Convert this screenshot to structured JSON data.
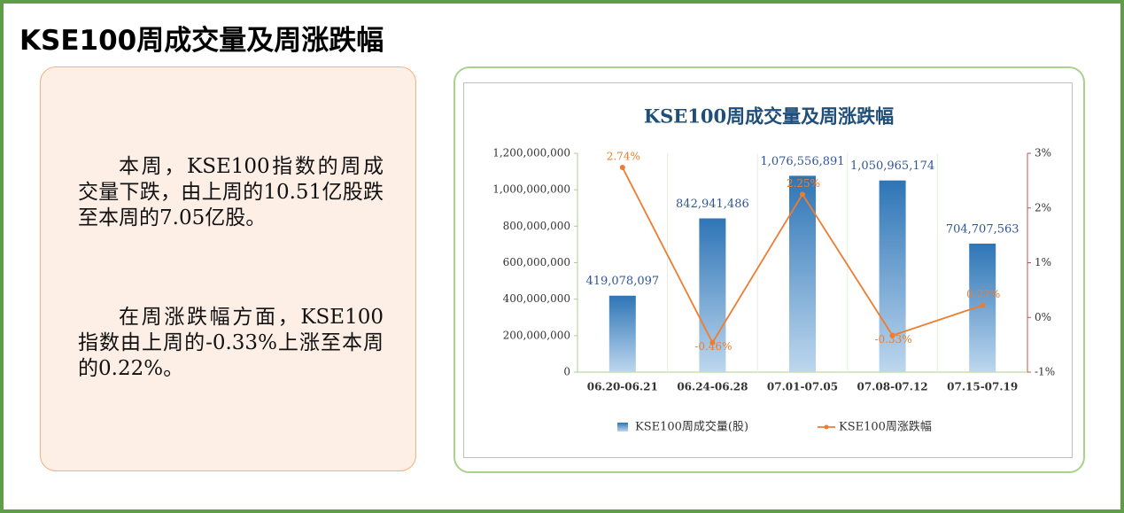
{
  "header": {
    "title": "KSE100周成交量及周涨跌幅"
  },
  "summary": {
    "paragraphs": [
      "本周，KSE100指数的周成交量下跌，由上周的10.51亿股跌至本周的7.05亿股。",
      "在周涨跌幅方面，KSE100指数由上周的-0.33%上涨至本周的0.22%。"
    ]
  },
  "chart_data": {
    "type": "bar",
    "title": "KSE100周成交量及周涨跌幅",
    "categories": [
      "06.20-06.21",
      "06.24-06.28",
      "07.01-07.05",
      "07.08-07.12",
      "07.15-07.19"
    ],
    "series": [
      {
        "name": "KSE100周成交量(股)",
        "type": "bar",
        "color": "#2e75b6",
        "values": [
          419078097,
          842941486,
          1076556891,
          1050965174,
          704707563
        ],
        "value_labels": [
          "419,078,097",
          "842,941,486",
          "1,076,556,891",
          "1,050,965,174",
          "704,707,563"
        ]
      },
      {
        "name": "KSE100周涨跌幅",
        "type": "line",
        "axis": "y2",
        "color": "#ed7d31",
        "values": [
          2.74,
          -0.46,
          2.25,
          -0.33,
          0.22
        ],
        "value_labels": [
          "2.74%",
          "-0.46%",
          "2.25%",
          "-0.33%",
          "0.22%"
        ]
      }
    ],
    "ylim": [
      0,
      1200000000
    ],
    "yticks": [
      0,
      {
        "value": 200000000,
        "label": "200,000,000"
      },
      {
        "value": 400000000,
        "label": "400,000,000"
      },
      {
        "value": 600000000,
        "label": "600,000,000"
      },
      {
        "value": 800000000,
        "label": "800,000,000"
      },
      {
        "value": 1000000000,
        "label": "1,000,000,000"
      },
      {
        "value": 1200000000,
        "label": "1,200,000,000"
      }
    ],
    "y2lim": [
      -1,
      3
    ],
    "y2ticks": [
      {
        "value": -1,
        "label": "-1%"
      },
      {
        "value": 0,
        "label": "0%"
      },
      {
        "value": 1,
        "label": "1%"
      },
      {
        "value": 2,
        "label": "2%"
      },
      {
        "value": 3,
        "label": "3%"
      }
    ]
  }
}
